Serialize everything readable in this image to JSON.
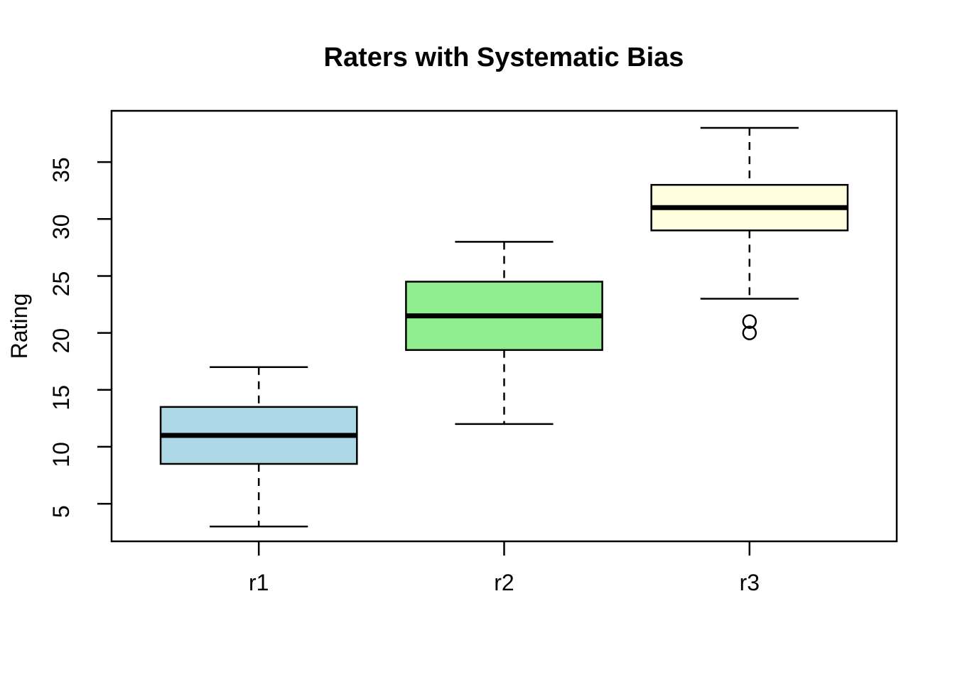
{
  "title": "Raters with Systematic Bias",
  "chart_data": {
    "type": "boxplot",
    "title": "Raters with Systematic Bias",
    "xlabel": "",
    "ylabel": "Rating",
    "categories": [
      "r1",
      "r2",
      "r3"
    ],
    "y_ticks": [
      5,
      10,
      15,
      20,
      25,
      30,
      35
    ],
    "ylim": [
      1.7,
      39.5
    ],
    "xlim": [
      0.4,
      3.6
    ],
    "grid": false,
    "legend": "none",
    "box_width_units": 0.8,
    "staple_width_units": 0.4,
    "series": [
      {
        "name": "r1",
        "color": "#ADD8E6",
        "whisker_low": 3,
        "q1": 8.5,
        "median": 11,
        "q3": 13.5,
        "whisker_high": 17,
        "outliers": []
      },
      {
        "name": "r2",
        "color": "#90EE90",
        "whisker_low": 12,
        "q1": 18.5,
        "median": 21.5,
        "q3": 24.5,
        "whisker_high": 28,
        "outliers": []
      },
      {
        "name": "r3",
        "color": "#FFFFE0",
        "whisker_low": 23,
        "q1": 29,
        "median": 31,
        "q3": 33,
        "whisker_high": 38,
        "outliers": [
          21,
          20
        ]
      }
    ],
    "colors": {
      "stroke": "#000000",
      "median": "#000000",
      "background": "#FFFFFF"
    }
  }
}
